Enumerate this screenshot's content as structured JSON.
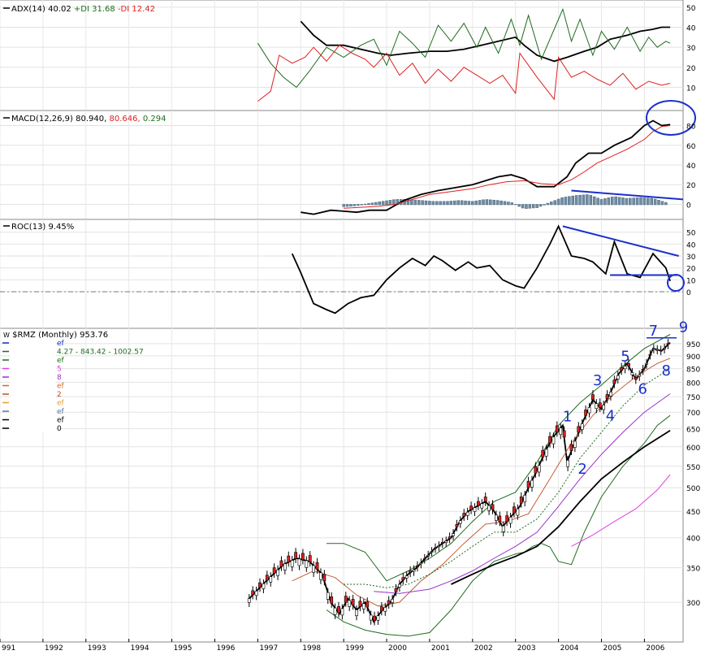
{
  "chart_data": [
    {
      "panel": "adx",
      "type": "line",
      "title": "ADX(14) 40.02",
      "plus_di_label": "+DI 31.68",
      "minus_di_label": "-DI 12.42",
      "ylim": [
        0,
        52
      ],
      "yticks": [
        10,
        20,
        30,
        40,
        50
      ],
      "series": [
        {
          "name": "ADX",
          "color": "#000000",
          "x": [
            1998.0,
            1998.3,
            1998.6,
            1999.0,
            1999.4,
            1999.8,
            2000.1,
            2000.5,
            2001.0,
            2001.4,
            2001.8,
            2002.2,
            2002.6,
            2003.0,
            2003.2,
            2003.5,
            2003.9,
            2004.2,
            2004.6,
            2004.9,
            2005.2,
            2005.6,
            2005.9,
            2006.2,
            2006.4,
            2006.6
          ],
          "values": [
            43,
            36,
            31,
            31,
            29,
            27,
            26,
            27,
            28,
            28,
            29,
            31,
            33,
            35,
            31,
            26,
            23,
            25,
            28,
            30,
            34,
            36,
            38,
            39,
            40,
            40
          ]
        },
        {
          "name": "+DI",
          "color": "#1f6b1f",
          "x": [
            1997.0,
            1997.3,
            1997.6,
            1997.9,
            1998.2,
            1998.6,
            1999.0,
            1999.4,
            1999.7,
            2000.0,
            2000.3,
            2000.6,
            2000.9,
            2001.2,
            2001.5,
            2001.8,
            2002.1,
            2002.3,
            2002.6,
            2002.9,
            2003.1,
            2003.3,
            2003.6,
            2003.9,
            2004.1,
            2004.3,
            2004.5,
            2004.8,
            2005.0,
            2005.3,
            2005.6,
            2005.9,
            2006.1,
            2006.3,
            2006.5,
            2006.6
          ],
          "values": [
            32,
            22,
            15,
            10,
            18,
            30,
            25,
            31,
            34,
            21,
            38,
            32,
            25,
            41,
            33,
            42,
            30,
            40,
            27,
            44,
            31,
            46,
            24,
            39,
            49,
            33,
            44,
            26,
            38,
            29,
            40,
            28,
            35,
            30,
            33,
            32
          ]
        },
        {
          "name": "-DI",
          "color": "#e02020",
          "x": [
            1997.0,
            1997.3,
            1997.5,
            1997.8,
            1998.1,
            1998.3,
            1998.6,
            1998.9,
            1999.2,
            1999.5,
            1999.7,
            2000.0,
            2000.3,
            2000.6,
            2000.9,
            2001.2,
            2001.5,
            2001.8,
            2002.1,
            2002.4,
            2002.7,
            2003.0,
            2003.1,
            2003.5,
            2003.9,
            2004.0,
            2004.3,
            2004.6,
            2004.9,
            2005.2,
            2005.5,
            2005.8,
            2006.1,
            2006.4,
            2006.6
          ],
          "values": [
            3,
            8,
            26,
            22,
            25,
            30,
            23,
            31,
            27,
            24,
            20,
            27,
            16,
            22,
            12,
            19,
            13,
            20,
            16,
            12,
            16,
            7,
            27,
            15,
            4,
            25,
            15,
            18,
            14,
            11,
            17,
            9,
            13,
            11,
            12
          ]
        }
      ]
    },
    {
      "panel": "macd",
      "type": "line",
      "title": "MACD(12,26,9) 80.940,",
      "signal_label": "80.646,",
      "hist_label": "0.294",
      "ylim": [
        -12,
        92
      ],
      "yticks": [
        0,
        20,
        40,
        60,
        80
      ],
      "series": [
        {
          "name": "MACD",
          "color": "#000000",
          "x": [
            1998.0,
            1998.3,
            1998.7,
            1999.0,
            1999.3,
            1999.6,
            2000.0,
            2000.4,
            2000.8,
            2001.2,
            2001.6,
            2002.0,
            2002.3,
            2002.6,
            2002.9,
            2003.2,
            2003.5,
            2003.9,
            2004.2,
            2004.4,
            2004.7,
            2005.0,
            2005.3,
            2005.7,
            2006.0,
            2006.2,
            2006.4,
            2006.6
          ],
          "values": [
            -8,
            -10,
            -6,
            -7,
            -8,
            -6,
            -6,
            4,
            10,
            14,
            17,
            20,
            24,
            28,
            30,
            26,
            18,
            18,
            28,
            42,
            52,
            52,
            60,
            68,
            80,
            85,
            80,
            81
          ]
        },
        {
          "name": "Signal",
          "color": "#e02020",
          "x": [
            1999.0,
            1999.4,
            1999.8,
            2000.2,
            2000.6,
            2001.0,
            2001.5,
            2002.0,
            2002.4,
            2002.8,
            2003.2,
            2003.6,
            2004.0,
            2004.3,
            2004.6,
            2004.9,
            2005.2,
            2005.6,
            2006.0,
            2006.2,
            2006.4,
            2006.6
          ],
          "values": [
            -4,
            -3,
            -2,
            0,
            5,
            10,
            13,
            16,
            20,
            23,
            24,
            21,
            20,
            25,
            33,
            42,
            48,
            56,
            66,
            74,
            79,
            80
          ]
        },
        {
          "name": "Histogram",
          "color": "#6f8ea5",
          "x": [
            1999.0,
            1999.3,
            1999.6,
            1999.9,
            2000.2,
            2000.5,
            2000.8,
            2001.1,
            2001.4,
            2001.7,
            2002.0,
            2002.3,
            2002.6,
            2002.9,
            2003.2,
            2003.5,
            2003.8,
            2004.1,
            2004.4,
            2004.7,
            2005.0,
            2005.3,
            2005.6,
            2005.9,
            2006.2,
            2006.5
          ],
          "values": [
            -2,
            -1,
            1,
            3,
            5,
            5,
            4,
            3,
            3,
            4,
            3,
            5,
            4,
            2,
            -4,
            -3,
            2,
            7,
            9,
            10,
            5,
            8,
            6,
            7,
            6,
            2
          ]
        }
      ],
      "trendline": {
        "color": "#1a2fcc",
        "x": [
          2004.3,
          2006.9
        ],
        "values": [
          14,
          5
        ]
      }
    },
    {
      "panel": "roc",
      "type": "line",
      "title": "ROC(13) 9.45%",
      "ylim": [
        -28,
        58
      ],
      "yticks": [
        0,
        10,
        20,
        30,
        40,
        50
      ],
      "series": [
        {
          "name": "ROC",
          "color": "#000000",
          "x": [
            1997.8,
            1998.0,
            1998.3,
            1998.6,
            1998.8,
            1999.1,
            1999.4,
            1999.7,
            2000.0,
            2000.3,
            2000.6,
            2000.9,
            2001.1,
            2001.3,
            2001.6,
            2001.9,
            2002.1,
            2002.4,
            2002.7,
            2003.0,
            2003.2,
            2003.5,
            2003.8,
            2004.0,
            2004.3,
            2004.6,
            2004.8,
            2005.1,
            2005.3,
            2005.6,
            2005.9,
            2006.2,
            2006.5,
            2006.6
          ],
          "values": [
            32,
            16,
            -10,
            -15,
            -18,
            -10,
            -5,
            -3,
            10,
            20,
            28,
            22,
            30,
            26,
            18,
            25,
            20,
            22,
            10,
            5,
            3,
            20,
            40,
            55,
            30,
            28,
            25,
            15,
            42,
            15,
            12,
            32,
            20,
            9
          ]
        }
      ],
      "trendlines": [
        {
          "color": "#1a2fcc",
          "x": [
            2004.1,
            2006.8
          ],
          "values": [
            55,
            30
          ]
        },
        {
          "color": "#1a2fcc",
          "x": [
            2005.2,
            2006.8
          ],
          "values": [
            14,
            14
          ]
        }
      ]
    },
    {
      "panel": "price",
      "type": "candlestick",
      "title": "$RMZ (Monthly) 953.76",
      "symbol_glyph": "W",
      "log_scale": true,
      "ylim": [
        255,
        1010
      ],
      "yticks": [
        300,
        350,
        400,
        450,
        500,
        550,
        600,
        650,
        700,
        750,
        800,
        850,
        900,
        950
      ],
      "xlim": [
        1991,
        2006.9
      ],
      "xticks": [
        "991",
        "1992",
        "1993",
        "1994",
        "1995",
        "1996",
        "1997",
        "1998",
        "1999",
        "2000",
        "2001",
        "2002",
        "2003",
        "2004",
        "2005",
        "2006"
      ],
      "legend": [
        {
          "color": "#1a2fcc",
          "text": "ef"
        },
        {
          "color": "#1f6b1f",
          "text": "4.27 - 843.42 - 1002.57"
        },
        {
          "color": "#1f6b1f",
          "text": "ef"
        },
        {
          "color": "#e040e0",
          "text": "5"
        },
        {
          "color": "#9933cc",
          "text": "8"
        },
        {
          "color": "#d2691e",
          "text": "ef"
        },
        {
          "color": "#b0522a",
          "text": "2"
        },
        {
          "color": "#e0a030",
          "text": "ef"
        },
        {
          "color": "#5a7a9a",
          "text": "ef"
        },
        {
          "color": "#000000",
          "text": "ef"
        },
        {
          "color": "#000000",
          "text": "0"
        }
      ],
      "series": [
        {
          "name": "Close",
          "color": "#000000",
          "x": [
            1996.8,
            1997.2,
            1997.6,
            1997.9,
            1998.2,
            1998.5,
            1998.7,
            1998.9,
            1999.1,
            1999.3,
            1999.5,
            1999.7,
            1999.9,
            2000.1,
            2000.3,
            2000.5,
            2000.7,
            2000.9,
            2001.1,
            2001.3,
            2001.5,
            2001.7,
            2001.9,
            2002.1,
            2002.3,
            2002.5,
            2002.7,
            2002.9,
            2003.1,
            2003.3,
            2003.5,
            2003.7,
            2003.9,
            2004.1,
            2004.2,
            2004.4,
            2004.6,
            2004.8,
            2005.0,
            2005.2,
            2005.4,
            2005.6,
            2005.8,
            2006.0,
            2006.2,
            2006.4,
            2006.6
          ],
          "values": [
            305,
            330,
            355,
            365,
            360,
            340,
            300,
            285,
            305,
            290,
            300,
            275,
            290,
            300,
            325,
            340,
            350,
            365,
            380,
            390,
            400,
            430,
            450,
            460,
            470,
            450,
            420,
            440,
            460,
            500,
            540,
            590,
            630,
            660,
            560,
            620,
            680,
            740,
            710,
            760,
            830,
            870,
            810,
            850,
            930,
            920,
            955
          ]
        },
        {
          "name": "MA-green-band-upper",
          "color": "#1f6b1f",
          "x": [
            1998.6,
            1999.0,
            1999.5,
            2000.0,
            2000.5,
            2001.0,
            2001.5,
            2002.0,
            2002.5,
            2003.0,
            2003.5,
            2004.0,
            2004.5,
            2005.0,
            2005.5,
            2006.0,
            2006.6
          ],
          "values": [
            390,
            390,
            375,
            330,
            345,
            365,
            390,
            430,
            470,
            490,
            560,
            660,
            730,
            790,
            860,
            930,
            990
          ]
        },
        {
          "name": "MA-green-band-lower",
          "color": "#1f6b1f",
          "x": [
            1998.6,
            1999.0,
            1999.5,
            2000.0,
            2000.5,
            2001.0,
            2001.5,
            2002.0,
            2002.5,
            2003.0,
            2003.2,
            2003.4,
            2003.6,
            2003.8,
            2004.0,
            2004.3,
            2004.6,
            2005.0,
            2005.5,
            2006.0,
            2006.3,
            2006.6
          ],
          "values": [
            290,
            275,
            265,
            260,
            258,
            262,
            290,
            330,
            360,
            372,
            375,
            385,
            390,
            384,
            360,
            355,
            410,
            480,
            550,
            610,
            660,
            690
          ]
        },
        {
          "name": "MA-orange",
          "color": "#c0603a",
          "x": [
            1997.8,
            1998.3,
            1998.8,
            1999.3,
            1999.8,
            2000.3,
            2000.8,
            2001.3,
            2001.8,
            2002.3,
            2002.8,
            2003.3,
            2003.8,
            2004.3,
            2004.8,
            2005.3,
            2005.8,
            2006.3,
            2006.6
          ],
          "values": [
            330,
            345,
            335,
            310,
            295,
            300,
            330,
            355,
            390,
            425,
            430,
            445,
            520,
            610,
            690,
            760,
            820,
            870,
            890
          ]
        },
        {
          "name": "MA-dotted",
          "color": "#1f6b1f",
          "dashed": true,
          "x": [
            1999.0,
            1999.5,
            2000.0,
            2000.5,
            2001.0,
            2001.5,
            2002.0,
            2002.5,
            2003.0,
            2003.5,
            2004.0,
            2004.5,
            2005.0,
            2005.5,
            2006.0,
            2006.6
          ],
          "values": [
            325,
            325,
            320,
            325,
            340,
            360,
            385,
            410,
            410,
            435,
            490,
            570,
            640,
            720,
            790,
            850
          ]
        },
        {
          "name": "MA-purple",
          "color": "#9933cc",
          "x": [
            1999.7,
            2000.3,
            2001.0,
            2001.5,
            2002.0,
            2002.5,
            2003.0,
            2003.5,
            2004.0,
            2004.5,
            2005.0,
            2005.5,
            2006.0,
            2006.6
          ],
          "values": [
            315,
            312,
            318,
            330,
            345,
            365,
            385,
            410,
            460,
            520,
            580,
            640,
            700,
            760
          ]
        },
        {
          "name": "MA-black",
          "color": "#000000",
          "x": [
            2001.5,
            2002.0,
            2002.5,
            2003.0,
            2003.5,
            2004.0,
            2004.5,
            2005.0,
            2005.5,
            2006.0,
            2006.6
          ],
          "values": [
            325,
            340,
            355,
            368,
            385,
            420,
            470,
            520,
            560,
            600,
            645
          ]
        },
        {
          "name": "MA-magenta",
          "color": "#e040e0",
          "x": [
            2004.3,
            2004.8,
            2005.3,
            2005.8,
            2006.3,
            2006.6
          ],
          "values": [
            385,
            405,
            430,
            455,
            495,
            530
          ]
        }
      ],
      "annotations": [
        {
          "text": "1",
          "x": 2004.1,
          "y": 672
        },
        {
          "text": "2",
          "x": 2004.45,
          "y": 532
        },
        {
          "text": "3",
          "x": 2004.8,
          "y": 790
        },
        {
          "text": "4",
          "x": 2005.1,
          "y": 674
        },
        {
          "text": "5",
          "x": 2005.45,
          "y": 878
        },
        {
          "text": "6",
          "x": 2005.85,
          "y": 760
        },
        {
          "text": "7",
          "x": 2006.1,
          "y": 985
        },
        {
          "text": "8",
          "x": 2006.4,
          "y": 825
        },
        {
          "text": "9",
          "x": 2006.8,
          "y": 1000
        }
      ]
    }
  ],
  "colors": {
    "up_candle": "#ffffff",
    "down_candle": "#dd2020",
    "annotation": "#1a2fcc",
    "grid": "#c8c8c8",
    "panel_border": "#888888"
  }
}
